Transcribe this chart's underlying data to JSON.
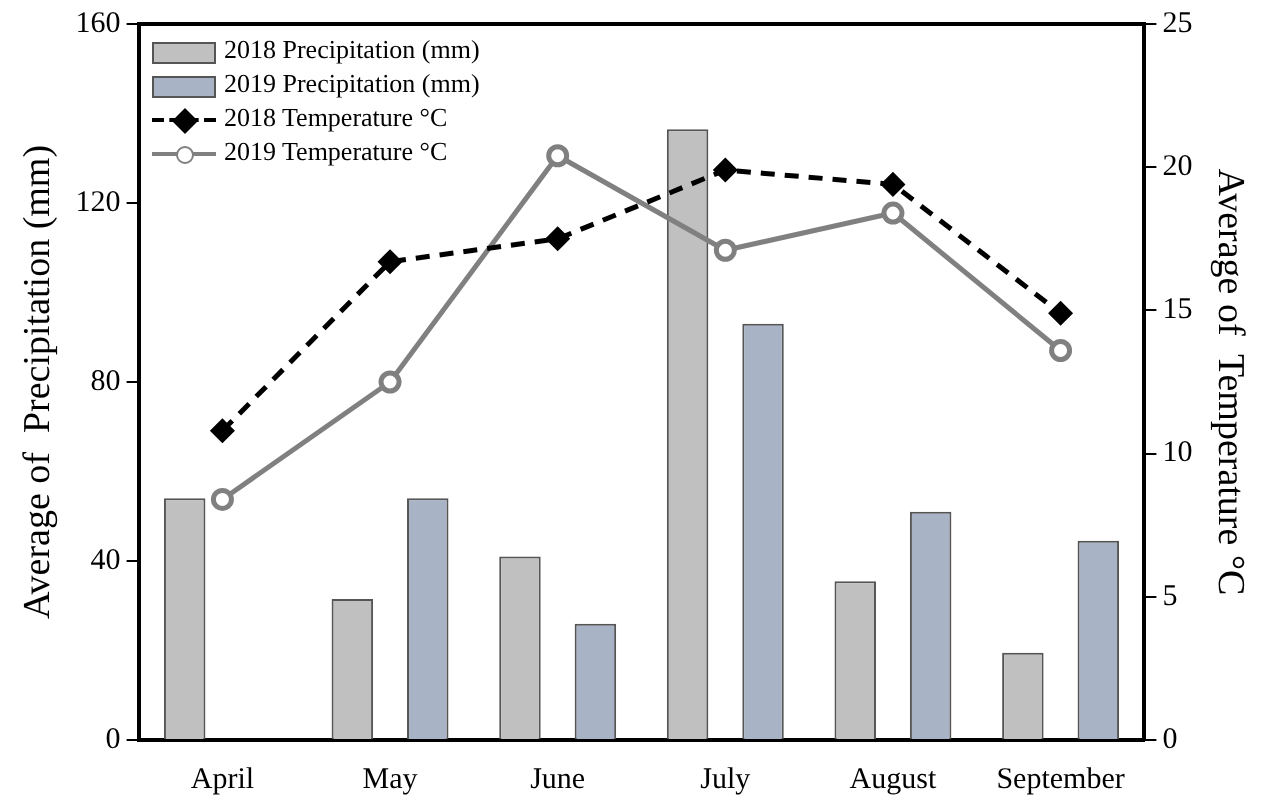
{
  "chart_data": {
    "type": "bar",
    "categories": [
      "April",
      "May",
      "June",
      "July",
      "August",
      "September"
    ],
    "ylabel": "Average of  Precipitation (mm)",
    "y2label": "Average of  Temperature °C",
    "ylim": [
      0,
      160
    ],
    "yticks": [
      0,
      40,
      80,
      120,
      160
    ],
    "y2lim": [
      0,
      25
    ],
    "y2ticks": [
      0,
      5,
      10,
      15,
      20,
      25
    ],
    "legend": "top left",
    "grid": false,
    "series": [
      {
        "name": "2018 Precipitation (mm)",
        "color": "#c0c0c0",
        "values": [
          54,
          31.5,
          41,
          136.5,
          35.5,
          19.5
        ]
      },
      {
        "name": "2019 Precipitation (mm)",
        "color": "#a9b3c6",
        "values": [
          null,
          54,
          26,
          93,
          51,
          44.5
        ]
      },
      {
        "name": "2018 Temperature °C",
        "type": "line",
        "axis": "y2",
        "color": "#000000",
        "marker": "diamond",
        "line_style": "dashed",
        "values": [
          10.8,
          16.7,
          17.5,
          19.9,
          19.4,
          14.9
        ]
      },
      {
        "name": "2019 Temperature °C",
        "type": "line",
        "axis": "y2",
        "color": "#808080",
        "marker": "circle",
        "line_style": "solid",
        "values": [
          8.4,
          12.5,
          20.4,
          17.1,
          18.4,
          13.6
        ]
      }
    ]
  }
}
